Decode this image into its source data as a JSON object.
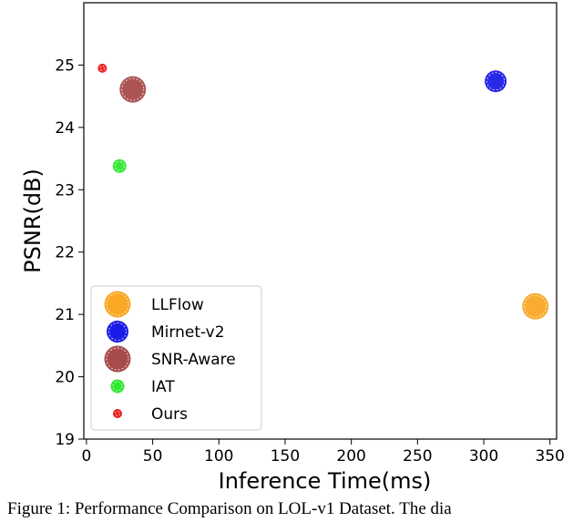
{
  "chart_data": {
    "type": "scatter",
    "xlabel": "Inference Time(ms)",
    "ylabel": "PSNR(dB)",
    "xlim": [
      -2,
      355
    ],
    "ylim": [
      19,
      26
    ],
    "xticks": [
      "0",
      "50",
      "100",
      "150",
      "200",
      "250",
      "300",
      "350"
    ],
    "yticks": [
      "19",
      "20",
      "21",
      "22",
      "23",
      "24",
      "25"
    ],
    "legend_position": "lower-left",
    "series": [
      {
        "name": "LLFlow",
        "x": 339,
        "y": 21.13,
        "color": "#f9a825",
        "size": "large"
      },
      {
        "name": "Mirnet-v2",
        "x": 309,
        "y": 24.74,
        "color": "#1c1ce8",
        "size": "medium"
      },
      {
        "name": "SNR-Aware",
        "x": 35,
        "y": 24.61,
        "color": "#a84b4b",
        "size": "large"
      },
      {
        "name": "IAT",
        "x": 25,
        "y": 23.38,
        "color": "#2ee82e",
        "size": "small"
      },
      {
        "name": "Ours",
        "x": 12,
        "y": 24.95,
        "color": "#ee1b1b",
        "size": "tiny"
      }
    ]
  },
  "caption": "Figure 1: Performance Comparison on LOL-v1 Dataset. The dia"
}
